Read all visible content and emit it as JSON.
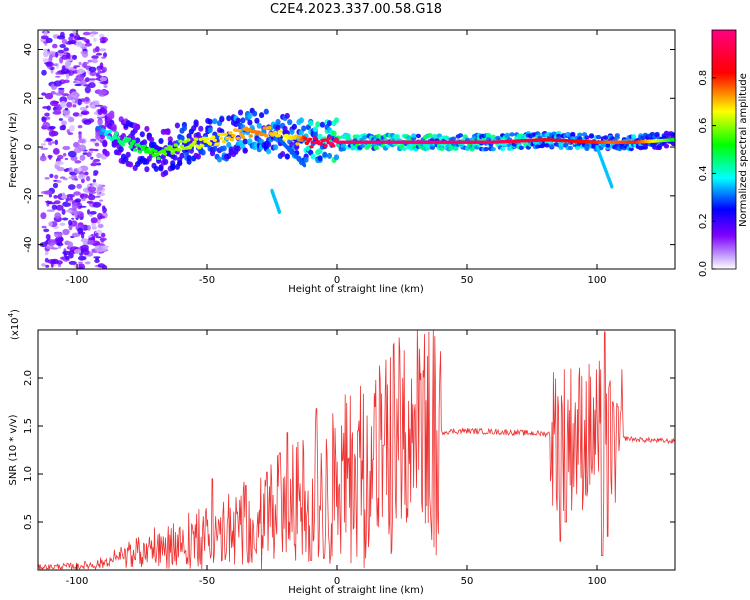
{
  "title": "C2E4.2023.337.00.58.G18",
  "chart_data": [
    {
      "type": "heatmap",
      "xlabel": "Height of straight line (km)",
      "ylabel": "Frequency (Hz)",
      "xlim": [
        -115,
        130
      ],
      "ylim": [
        -50,
        48
      ],
      "xticks": [
        -100,
        -50,
        0,
        50,
        100
      ],
      "yticks": [
        -40,
        -20,
        0,
        20,
        40
      ],
      "colorbar": {
        "label": "Normalized spectral amplitude",
        "range": [
          0.0,
          1.0
        ],
        "ticks": [
          "0.0",
          "0.2",
          "0.4",
          "0.6",
          "0.8"
        ],
        "colormap": "rainbow",
        "colors": [
          "#ffffff",
          "#7f00ff",
          "#0000ff",
          "#00ffff",
          "#00ff00",
          "#ffff00",
          "#ff0000",
          "#ff0080"
        ]
      },
      "ridge": {
        "x": [
          -92,
          -85,
          -75,
          -68,
          -60,
          -50,
          -40,
          -30,
          -25,
          -20,
          -15,
          -10,
          0,
          20,
          60,
          80,
          100,
          105,
          115,
          130
        ],
        "frequency": [
          8,
          4,
          -1,
          -3,
          1,
          2,
          5,
          7,
          6,
          4,
          3,
          2,
          2,
          2,
          2,
          3,
          2,
          2,
          2,
          3
        ],
        "amplitude": [
          0.3,
          0.45,
          0.5,
          0.55,
          0.6,
          0.65,
          0.7,
          0.75,
          0.7,
          0.65,
          0.7,
          0.9,
          0.95,
          1.0,
          0.95,
          0.85,
          0.8,
          0.75,
          0.8,
          0.5
        ]
      }
    },
    {
      "type": "line",
      "xlabel": "Height of straight line (km)",
      "ylabel": "SNR (10 * v/v)",
      "y_multiplier": "(x10",
      "y_multiplier_exp": "4",
      "y_multiplier_close": ")",
      "xlim": [
        -115,
        130
      ],
      "ylim": [
        0,
        2.5
      ],
      "xticks": [
        -100,
        -50,
        0,
        50,
        100
      ],
      "yticks": [
        0.5,
        1.0,
        1.5,
        2.0
      ],
      "color": "#ee3333",
      "envelope": {
        "x": [
          -115,
          -100,
          -92,
          -85,
          -75,
          -65,
          -55,
          -45,
          -35,
          -25,
          -15,
          -8,
          0,
          5,
          10,
          15,
          20,
          25,
          30,
          40,
          50,
          60,
          70,
          80,
          82
        ],
        "y": [
          0.03,
          0.04,
          0.06,
          0.12,
          0.2,
          0.27,
          0.33,
          0.4,
          0.5,
          0.62,
          0.72,
          0.82,
          0.92,
          1.0,
          1.08,
          1.17,
          1.25,
          1.32,
          1.38,
          1.44,
          1.45,
          1.44,
          1.43,
          1.42,
          1.42
        ]
      },
      "spikes": [
        {
          "x": -48,
          "y": 0.95
        },
        {
          "x": -35,
          "y": 0.88
        },
        {
          "x": -27,
          "y": 1.02
        },
        {
          "x": -22,
          "y": 1.22
        },
        {
          "x": -19,
          "y": 1.43
        },
        {
          "x": -8,
          "y": 1.68
        },
        {
          "x": 8,
          "y": 1.45
        },
        {
          "x": 14,
          "y": 1.15
        },
        {
          "x": 18,
          "y": 1.3
        },
        {
          "x": 86,
          "y": 2.3
        },
        {
          "x": 88,
          "y": 2.28
        },
        {
          "x": 103,
          "y": 2.48
        },
        {
          "x": 106,
          "y": 1.75
        },
        {
          "x": 108,
          "y": 1.7
        }
      ],
      "dips": [
        {
          "x": -10,
          "y": 0.1
        },
        {
          "x": -5,
          "y": 0.12
        },
        {
          "x": 86,
          "y": 0.3
        },
        {
          "x": 88,
          "y": 0.5
        },
        {
          "x": 102,
          "y": 0.15
        },
        {
          "x": 104,
          "y": 0.35
        }
      ],
      "tail": {
        "x": [
          108,
          115,
          130
        ],
        "y": [
          1.38,
          1.36,
          1.34
        ]
      }
    }
  ]
}
